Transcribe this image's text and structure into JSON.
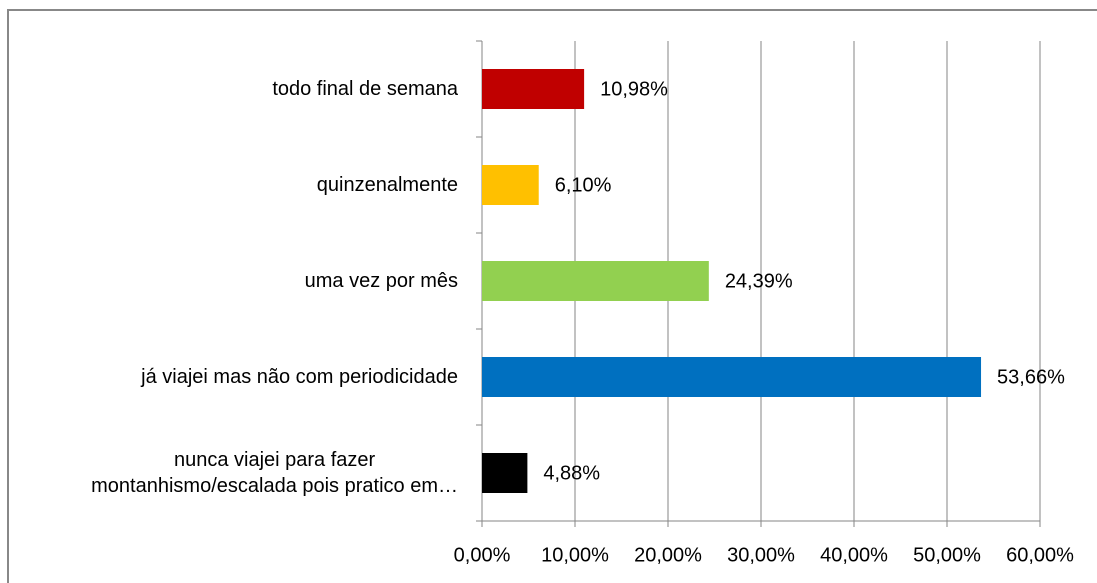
{
  "chart_data": {
    "type": "barh",
    "categories": [
      "todo final de semana",
      "quinzenalmente",
      "uma vez por mês",
      "já viajei mas não com periodicidade",
      "nunca viajei para fazer\nmontanhismo/escalada pois pratico em…"
    ],
    "values": [
      10.98,
      6.1,
      24.39,
      53.66,
      4.88
    ],
    "value_labels": [
      "10,98%",
      "6,10%",
      "24,39%",
      "53,66%",
      "4,88%"
    ],
    "colors": [
      "#c00000",
      "#ffc000",
      "#92d050",
      "#0070c0",
      "#000000"
    ],
    "xlim": [
      0,
      60
    ],
    "xticks": [
      {
        "value": 0,
        "label": "0,00%"
      },
      {
        "value": 10,
        "label": "10,00%"
      },
      {
        "value": 20,
        "label": "20,00%"
      },
      {
        "value": 30,
        "label": "30,00%"
      },
      {
        "value": 40,
        "label": "40,00%"
      },
      {
        "value": 50,
        "label": "50,00%"
      },
      {
        "value": 60,
        "label": "60,00%"
      }
    ],
    "grid": true
  }
}
